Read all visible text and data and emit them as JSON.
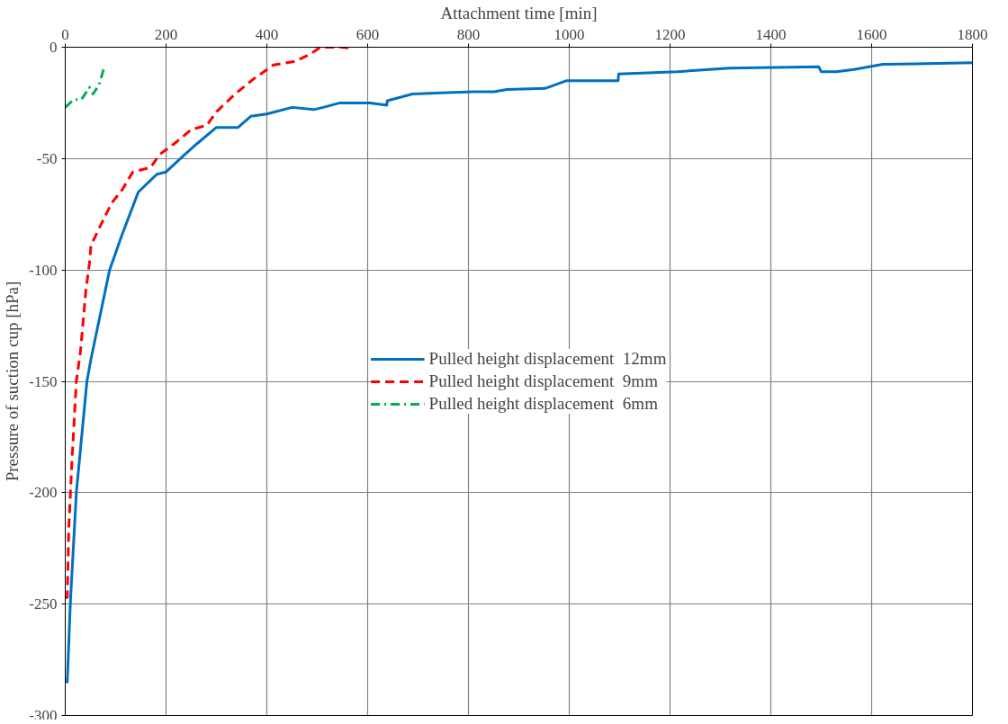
{
  "chart_data": {
    "type": "line",
    "xlabel": "Attachment time [min]",
    "ylabel": "Pressure of suction cup [hPa]",
    "xlim": [
      0,
      1800
    ],
    "xticks": [
      0,
      200,
      400,
      600,
      800,
      1000,
      1200,
      1400,
      1600,
      1800
    ],
    "ylim": [
      -300,
      0
    ],
    "yticks": [
      -300,
      -250,
      -200,
      -150,
      -100,
      -50,
      0
    ],
    "grid": true,
    "legend": "center",
    "marker": "none",
    "series": [
      {
        "name": "Pulled height displacement  12mm",
        "color": "#0070c0",
        "line_style": "solid",
        "x": [
          0,
          4,
          10,
          22,
          43,
          51,
          88,
          113,
          145,
          182,
          200,
          238,
          263,
          300,
          343,
          368,
          400,
          450,
          493,
          512,
          545,
          605,
          638,
          639,
          689,
          808,
          851,
          876,
          952,
          995,
          1097,
          1098,
          1215,
          1318,
          1495,
          1500,
          1530,
          1565,
          1622,
          1800
        ],
        "values": [
          -284,
          -285,
          -250,
          -200,
          -150,
          -140,
          -100,
          -84,
          -65,
          -57,
          -56,
          -48,
          -43,
          -36,
          -36,
          -31,
          -30,
          -27,
          -28,
          -27,
          -25,
          -25,
          -26,
          -24,
          -21,
          -20,
          -20,
          -19,
          -18.5,
          -15,
          -15,
          -12,
          -11,
          -9.4,
          -8.8,
          -11,
          -11,
          -10,
          -7.7,
          -7
        ]
      },
      {
        "name": "Pulled height displacement  9mm",
        "color": "#ff0000",
        "line_style": "dashed",
        "x": [
          0,
          4,
          7,
          13,
          22,
          30,
          41,
          48,
          51,
          70,
          92,
          113,
          134,
          169,
          188,
          218,
          250,
          281,
          300,
          337,
          375,
          413,
          455,
          487,
          506,
          549,
          570
        ],
        "values": [
          -247,
          -247,
          -216,
          -187,
          -150,
          -137,
          -109,
          -97,
          -89,
          -80,
          -70,
          -64,
          -56,
          -54,
          -48,
          -43,
          -37,
          -35,
          -29,
          -21,
          -14,
          -8,
          -6.4,
          -3,
          0,
          0,
          -0.5
        ]
      },
      {
        "name": "Pulled height displacement  6mm",
        "color": "#00b050",
        "line_style": "dashdot",
        "x": [
          0,
          17,
          32,
          48,
          55,
          67,
          76
        ],
        "values": [
          -27,
          -23.5,
          -23.5,
          -18,
          -21,
          -17,
          -10
        ]
      }
    ]
  }
}
